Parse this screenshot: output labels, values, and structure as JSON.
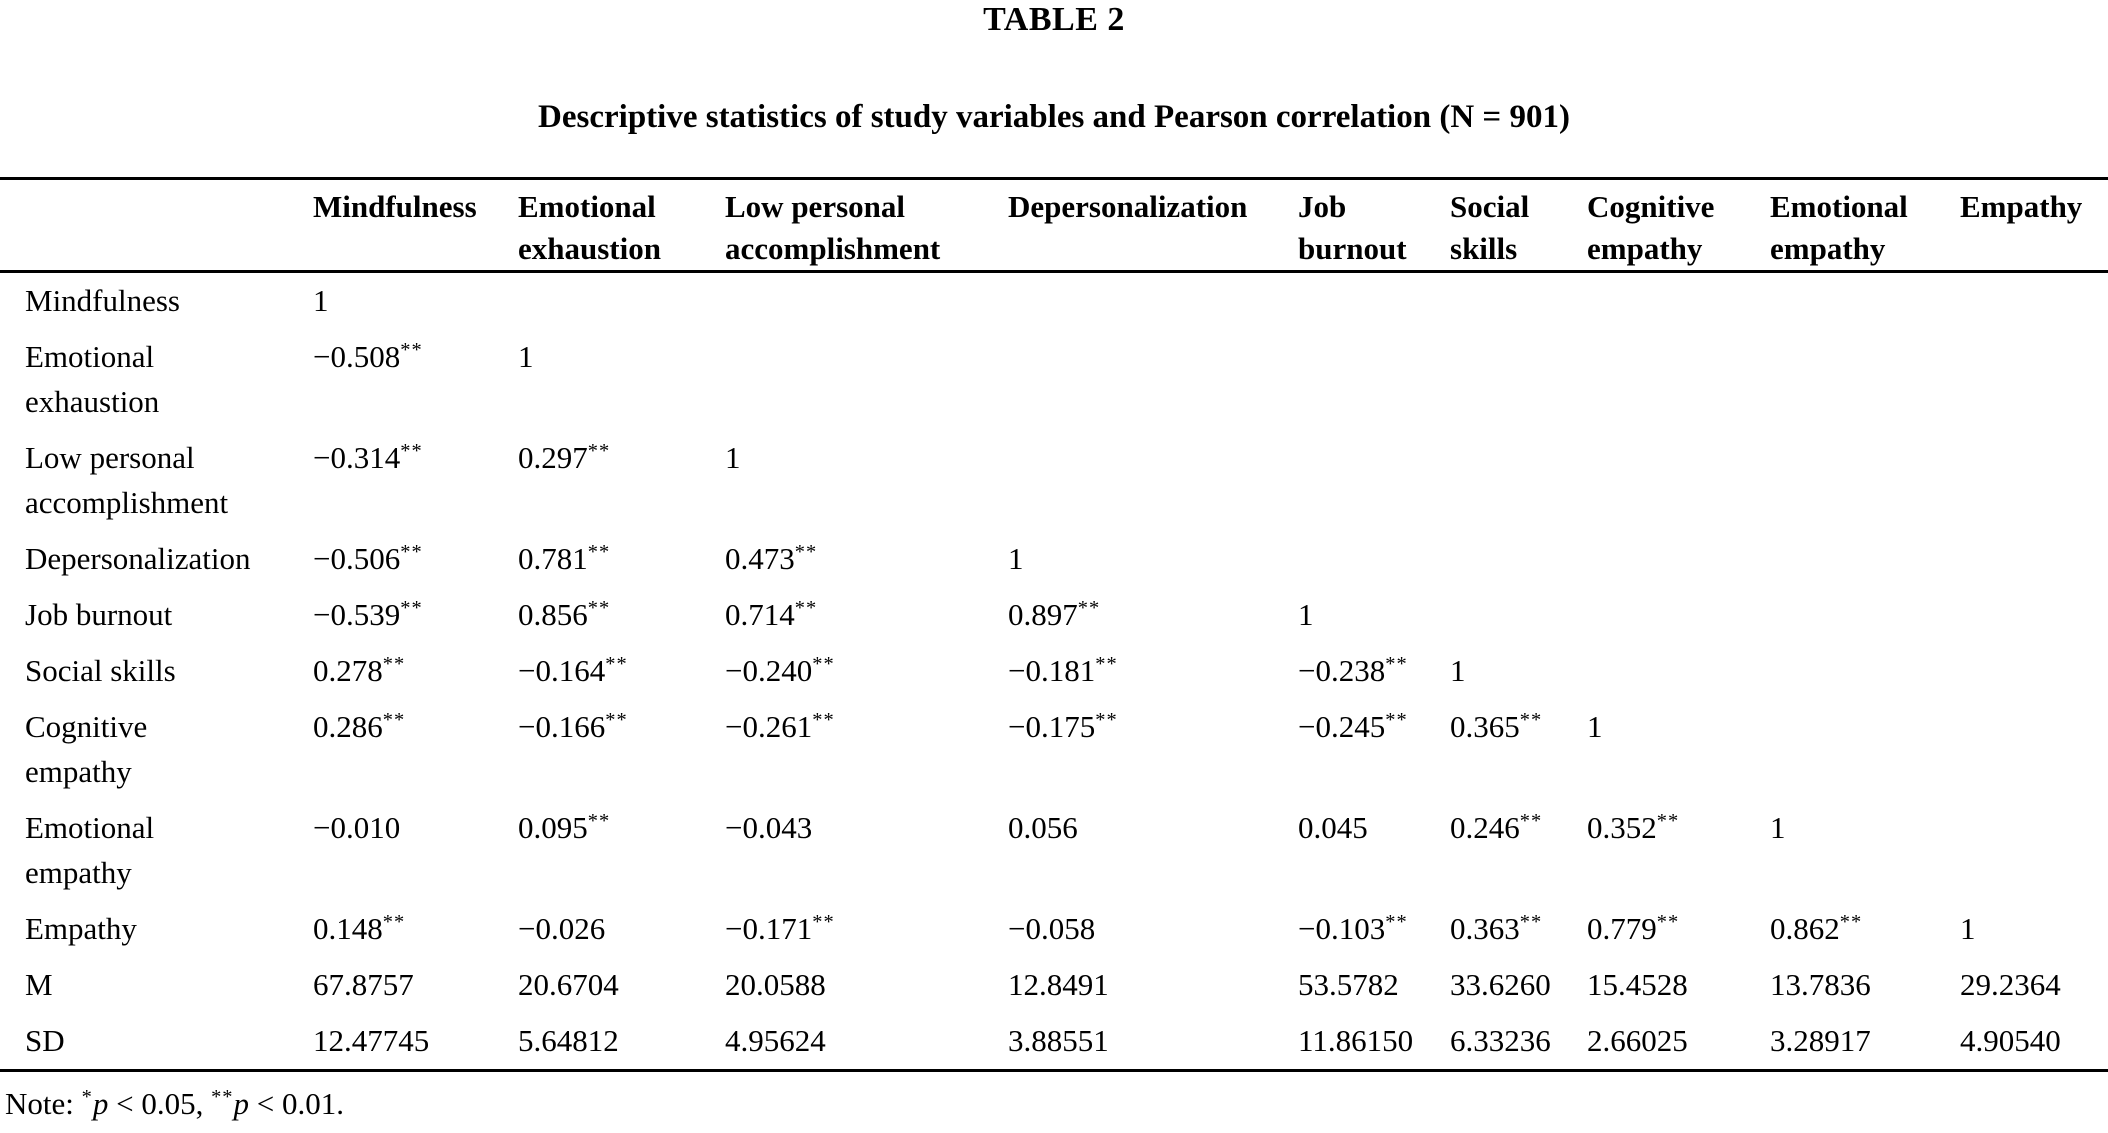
{
  "page": {
    "table_number": "TABLE 2",
    "caption": "Descriptive statistics of study variables and Pearson correlation (N = 901)"
  },
  "chart_data": {
    "type": "table",
    "columns": [
      [
        ""
      ],
      [
        "Mindfulness"
      ],
      [
        "Emotional",
        "exhaustion"
      ],
      [
        "Low personal",
        "accomplishment"
      ],
      [
        "Depersonalization"
      ],
      [
        "Job",
        "burnout"
      ],
      [
        "Social",
        "skills"
      ],
      [
        "Cognitive",
        "empathy"
      ],
      [
        "Emotional",
        "empathy"
      ],
      [
        "Empathy"
      ]
    ],
    "rows": [
      {
        "label": [
          "Mindfulness"
        ],
        "values": [
          "1",
          "",
          "",
          "",
          "",
          "",
          "",
          "",
          ""
        ]
      },
      {
        "label": [
          "Emotional",
          "exhaustion"
        ],
        "values": [
          "−0.508**",
          "1",
          "",
          "",
          "",
          "",
          "",
          "",
          ""
        ]
      },
      {
        "label": [
          "Low personal",
          "accomplishment"
        ],
        "values": [
          "−0.314**",
          "0.297**",
          "1",
          "",
          "",
          "",
          "",
          "",
          ""
        ]
      },
      {
        "label": [
          "Depersonalization"
        ],
        "values": [
          "−0.506**",
          "0.781**",
          "0.473**",
          "1",
          "",
          "",
          "",
          "",
          ""
        ]
      },
      {
        "label": [
          "Job burnout"
        ],
        "values": [
          "−0.539**",
          "0.856**",
          "0.714**",
          "0.897**",
          "1",
          "",
          "",
          "",
          ""
        ]
      },
      {
        "label": [
          "Social skills"
        ],
        "values": [
          "0.278**",
          "−0.164**",
          "−0.240**",
          "−0.181**",
          "−0.238**",
          "1",
          "",
          "",
          ""
        ]
      },
      {
        "label": [
          "Cognitive",
          "empathy"
        ],
        "values": [
          "0.286**",
          "−0.166**",
          "−0.261**",
          "−0.175**",
          "−0.245**",
          "0.365**",
          "1",
          "",
          ""
        ]
      },
      {
        "label": [
          "Emotional",
          "empathy"
        ],
        "values": [
          "−0.010",
          "0.095**",
          "−0.043",
          "0.056",
          "0.045",
          "0.246**",
          "0.352**",
          "1",
          ""
        ]
      },
      {
        "label": [
          "Empathy"
        ],
        "values": [
          "0.148**",
          "−0.026",
          "−0.171**",
          "−0.058",
          "−0.103**",
          "0.363**",
          "0.779**",
          "0.862**",
          "1"
        ]
      },
      {
        "label": [
          "M"
        ],
        "values": [
          "67.8757",
          "20.6704",
          "20.0588",
          "12.8491",
          "53.5782",
          "33.6260",
          "15.4528",
          "13.7836",
          "29.2364"
        ]
      },
      {
        "label": [
          "SD"
        ],
        "values": [
          "12.47745",
          "5.64812",
          "4.95624",
          "3.88551",
          "11.86150",
          "6.33236",
          "2.66025",
          "3.28917",
          "4.90540"
        ]
      }
    ]
  },
  "note": {
    "prefix": "Note: ",
    "segments": [
      {
        "type": "sup",
        "text": "*"
      },
      {
        "type": "italic",
        "text": "p"
      },
      {
        "type": "text",
        "text": " < 0.05, "
      },
      {
        "type": "sup",
        "text": "**"
      },
      {
        "type": "italic",
        "text": "p"
      },
      {
        "type": "text",
        "text": " < 0.01."
      }
    ]
  }
}
